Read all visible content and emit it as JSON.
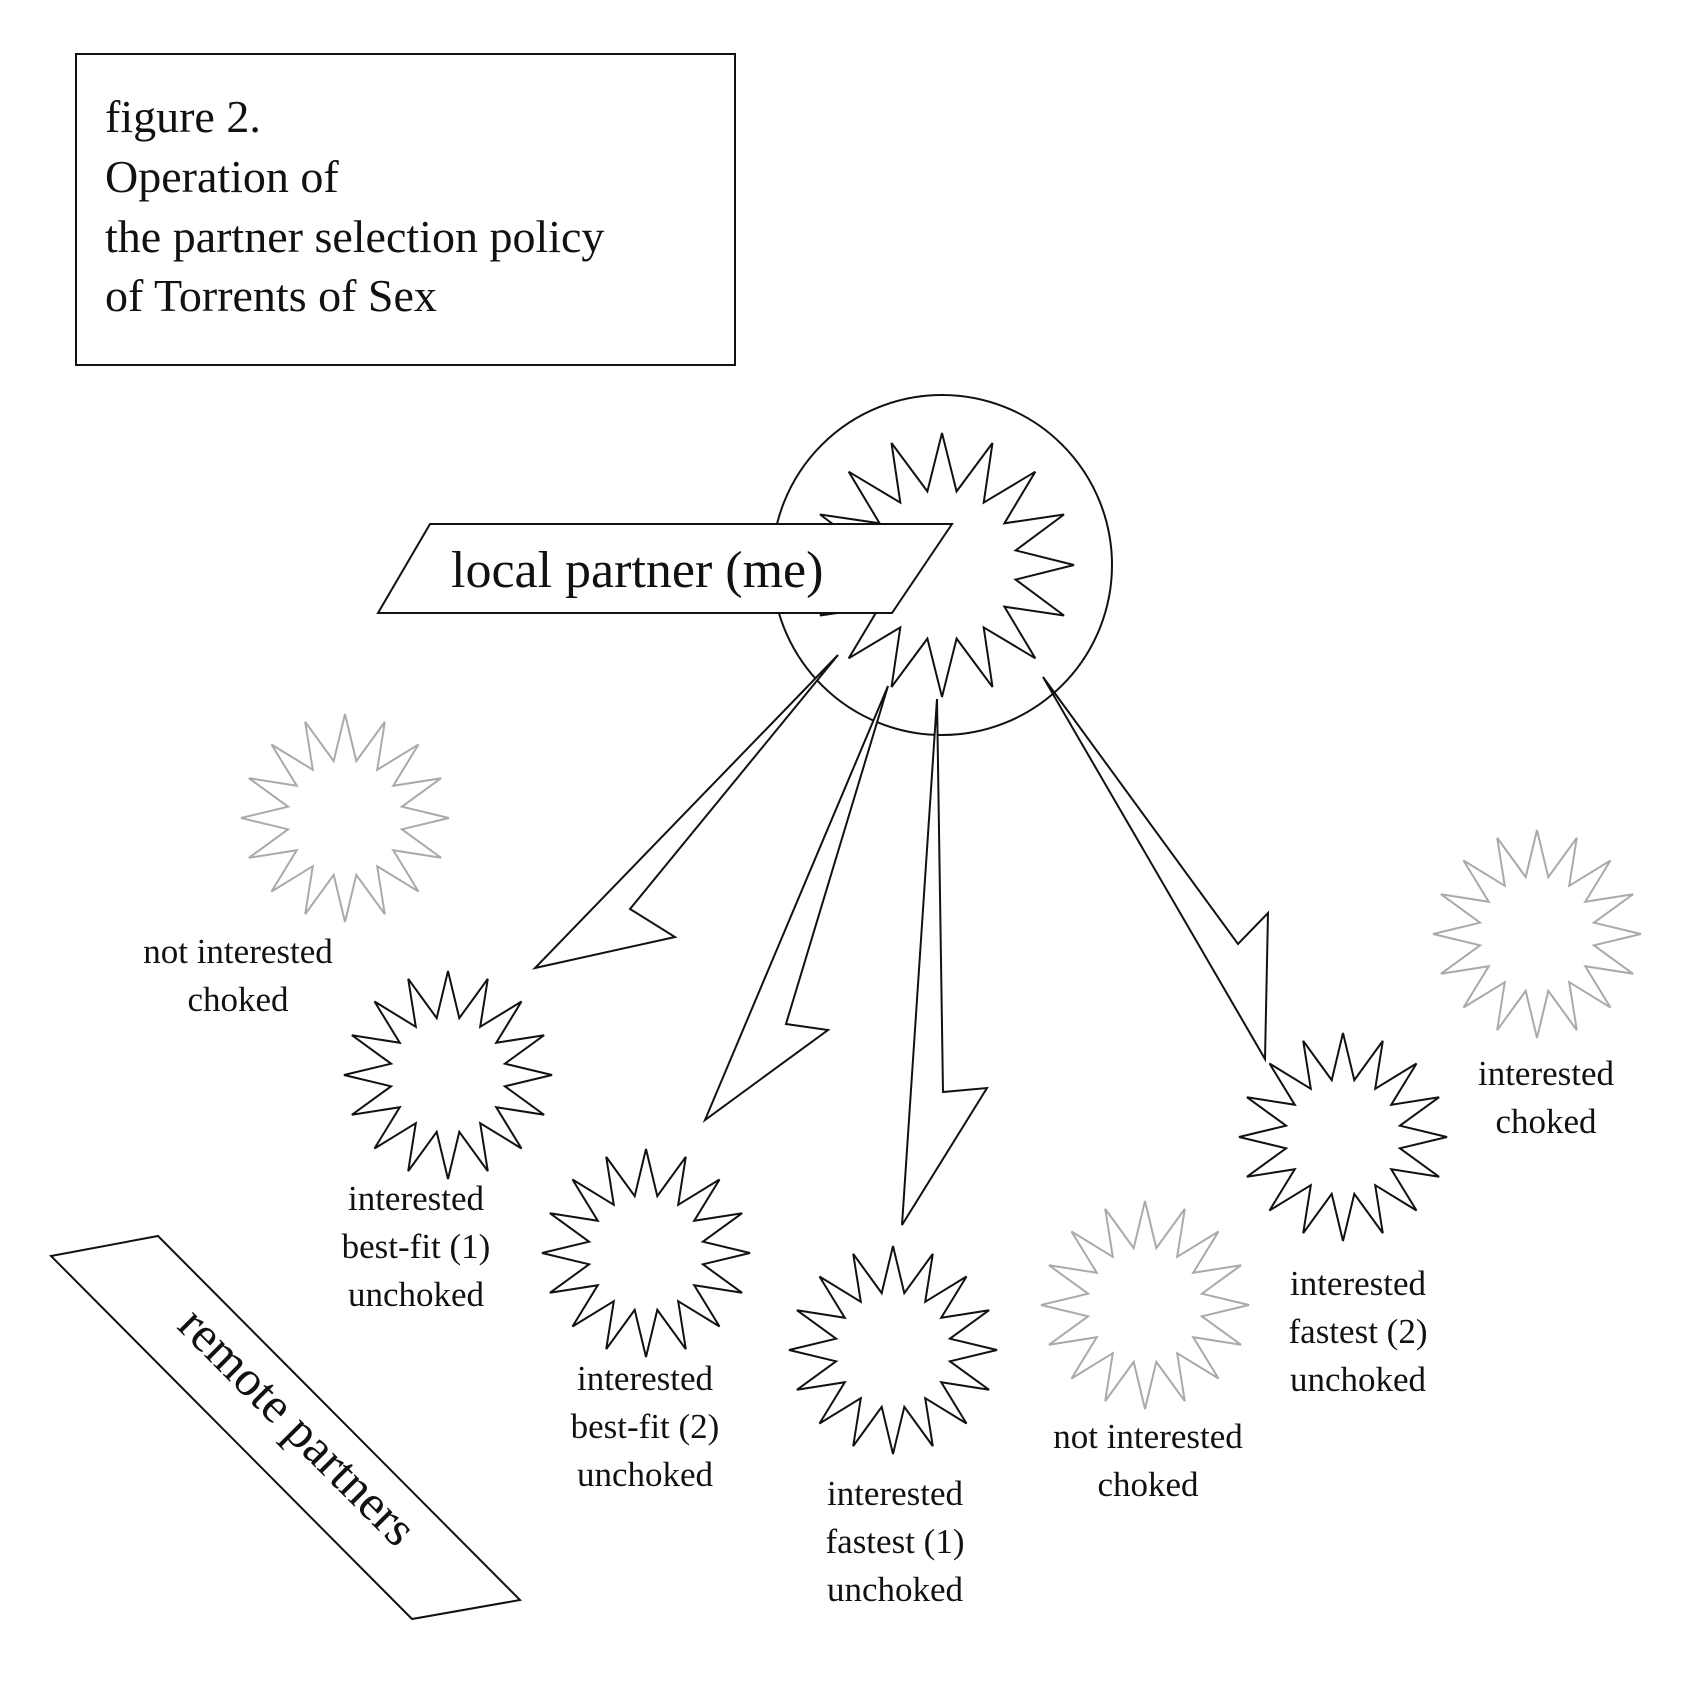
{
  "figure": {
    "title_lines": [
      "figure 2.",
      "Operation of",
      "the partner selection policy",
      "of Torrents of Sex"
    ]
  },
  "local_partner": {
    "label": "local partner (me)",
    "color": "#111111"
  },
  "remote_partners": {
    "label": "remote partners"
  },
  "peers": [
    {
      "id": "p1",
      "lines": [
        "not interested",
        "choked"
      ],
      "state": "choked",
      "color": "#aaaaaa"
    },
    {
      "id": "p2",
      "lines": [
        "interested",
        "best-fit (1)",
        "unchoked"
      ],
      "state": "unchoked",
      "color": "#111111"
    },
    {
      "id": "p3",
      "lines": [
        "interested",
        "best-fit (2)",
        "unchoked"
      ],
      "state": "unchoked",
      "color": "#111111"
    },
    {
      "id": "p4",
      "lines": [
        "interested",
        "fastest (1)",
        "unchoked"
      ],
      "state": "unchoked",
      "color": "#111111"
    },
    {
      "id": "p5",
      "lines": [
        "not interested",
        "choked"
      ],
      "state": "choked",
      "color": "#aaaaaa"
    },
    {
      "id": "p6",
      "lines": [
        "interested",
        "fastest (2)",
        "unchoked"
      ],
      "state": "unchoked",
      "color": "#111111"
    },
    {
      "id": "p7",
      "lines": [
        "interested",
        "choked"
      ],
      "state": "choked",
      "color": "#aaaaaa"
    }
  ]
}
